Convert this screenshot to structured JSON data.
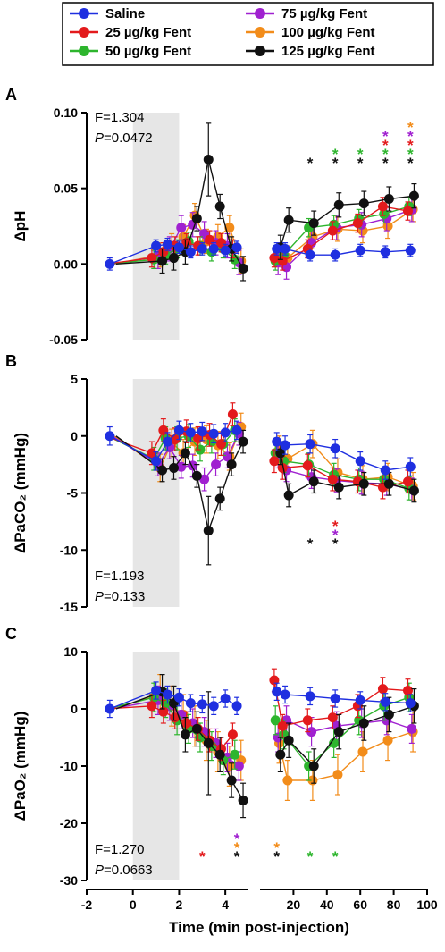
{
  "colors": {
    "saline": "#1f2fe0",
    "fent25": "#e31a1c",
    "fent50": "#2db52d",
    "fent75": "#a020d0",
    "fent100": "#f28c1a",
    "fent125": "#111111"
  },
  "chart_data": {
    "type": "line",
    "legend": [
      {
        "key": "saline",
        "label": "Saline"
      },
      {
        "key": "fent25",
        "label": "25 µg/kg Fent"
      },
      {
        "key": "fent50",
        "label": "50 µg/kg Fent"
      },
      {
        "key": "fent75",
        "label": "75 µg/kg Fent"
      },
      {
        "key": "fent100",
        "label": "100 µg/kg Fent"
      },
      {
        "key": "fent125",
        "label": "125 µg/kg Fent"
      }
    ],
    "xlabel": "Time (min post-injection)",
    "x_ticks_left": [
      "-2",
      "0",
      "2",
      "4"
    ],
    "x_ticks_right": [
      "20",
      "40",
      "60",
      "80",
      "100"
    ],
    "shaded_region": [
      0,
      2
    ],
    "x_left": [
      -1,
      1,
      1.5,
      2,
      2.5,
      3,
      3.5,
      4,
      4.5
    ],
    "x_right": [
      10,
      15,
      30,
      45,
      60,
      75,
      90
    ],
    "panels": [
      {
        "label": "A",
        "ylabel": "ΔpH",
        "yticks": [
          "0.10",
          "0.05",
          "0.00",
          "-0.05"
        ],
        "ylim": [
          -0.05,
          0.1
        ],
        "stat_f": "F=1.304",
        "stat_p": "=0.0472",
        "series": [
          {
            "key": "saline",
            "left": [
              0,
              0.012,
              0.013,
              0.011,
              0.008,
              0.01,
              0.01,
              0.009,
              0.011
            ],
            "right": [
              0.01,
              0.01,
              0.006,
              0.006,
              0.009,
              0.008,
              0.009
            ],
            "err": 0.004
          },
          {
            "key": "fent25",
            "left": [
              0,
              0.004,
              0.008,
              0.012,
              0.014,
              0.012,
              0.016,
              0.014,
              0.01
            ],
            "right": [
              0.004,
              0.002,
              0.01,
              0.022,
              0.027,
              0.038,
              0.035
            ],
            "err": 0.006
          },
          {
            "key": "fent50",
            "left": [
              0,
              0.003,
              0.006,
              0.01,
              0.015,
              0.012,
              0.008,
              0.01,
              0.003
            ],
            "right": [
              0.002,
              0.006,
              0.024,
              0.026,
              0.03,
              0.033,
              0.038
            ],
            "err": 0.006
          },
          {
            "key": "fent75",
            "left": [
              0,
              0.005,
              0.01,
              0.024,
              0.026,
              0.02,
              0.014,
              0.012,
              0.001
            ],
            "right": [
              0.001,
              -0.002,
              0.014,
              0.024,
              0.026,
              0.03,
              0.036
            ],
            "err": 0.008
          },
          {
            "key": "fent100",
            "left": [
              0,
              0.006,
              0.012,
              0.018,
              0.032,
              0.015,
              0.018,
              0.024,
              0.002
            ],
            "right": [
              0.006,
              0.004,
              0.018,
              0.023,
              0.022,
              0.025,
              0.036
            ],
            "err": 0.008
          },
          {
            "key": "fent125",
            "left": [
              0,
              0.002,
              0.004,
              0.008,
              0.03,
              0.069,
              0.038,
              0.01,
              -0.003
            ],
            "right": [
              0.011,
              0.029,
              0.027,
              0.039,
              0.04,
              0.043,
              0.045
            ],
            "err": 0.008
          }
        ],
        "stars": [
          {
            "x": 30,
            "levels": [
              "fent125"
            ]
          },
          {
            "x": 45,
            "levels": [
              "fent50",
              "fent125"
            ]
          },
          {
            "x": 60,
            "levels": [
              "fent50",
              "fent125"
            ]
          },
          {
            "x": 75,
            "levels": [
              "fent75",
              "fent25",
              "fent50",
              "fent125"
            ]
          },
          {
            "x": 90,
            "levels": [
              "fent100",
              "fent75",
              "fent25",
              "fent50",
              "fent125"
            ]
          }
        ]
      },
      {
        "label": "B",
        "ylabel": "ΔPaCO₂ (mmHg)",
        "yticks": [
          "5",
          "0",
          "-5",
          "-10",
          "-15"
        ],
        "ylim": [
          -15,
          5
        ],
        "stat_f": "F=1.193",
        "stat_p": "=0.133",
        "series": [
          {
            "key": "saline",
            "left": [
              0,
              -2.2,
              -0.5,
              0.5,
              0.3,
              0.4,
              0.2,
              0.3,
              0.5
            ],
            "right": [
              -0.5,
              -0.8,
              -0.7,
              -1.1,
              -2.2,
              -3.0,
              -2.7
            ],
            "err": 0.8
          },
          {
            "key": "fent25",
            "left": [
              0,
              -1.5,
              0.5,
              -0.3,
              0.4,
              -0.2,
              0.1,
              -0.7,
              1.9
            ],
            "right": [
              -2.2,
              -2.8,
              -2.6,
              -3.8,
              -4.0,
              -4.5,
              -4.0
            ],
            "err": 1.0
          },
          {
            "key": "fent50",
            "left": [
              0,
              -2.0,
              -0.2,
              -0.2,
              0.0,
              -1.2,
              -0.5,
              -0.7,
              0.5
            ],
            "right": [
              -1.5,
              -2.2,
              -2.5,
              -3.4,
              -3.8,
              -3.8,
              -4.6
            ],
            "err": 1.0
          },
          {
            "key": "fent75",
            "left": [
              0,
              -2.5,
              -1.0,
              -2.7,
              -2.6,
              -3.8,
              -2.5,
              -1.8,
              0.2
            ],
            "right": [
              -1.8,
              -3.0,
              -3.6,
              -3.9,
              -4.1,
              -4.2,
              -4.7
            ],
            "err": 1.0
          },
          {
            "key": "fent100",
            "left": [
              0,
              -2.8,
              -0.6,
              -1.5,
              -0.5,
              -0.3,
              -0.8,
              -1.8,
              0.8
            ],
            "right": [
              -1.2,
              -2.0,
              -0.7,
              -3.2,
              -3.8,
              -3.6,
              -4.4
            ],
            "err": 1.2
          },
          {
            "key": "fent125",
            "left": [
              0,
              -3.0,
              -2.8,
              -1.5,
              -3.5,
              -8.3,
              -5.5,
              -2.5,
              -0.5
            ],
            "right": [
              -1.5,
              -5.2,
              -4.0,
              -4.5,
              -4.2,
              -4.2,
              -4.8
            ],
            "err": 1.0
          }
        ],
        "stars": [
          {
            "x": 30,
            "levels": [
              "fent125"
            ]
          },
          {
            "x": 45,
            "levels": [
              "fent25",
              "fent75",
              "fent125"
            ]
          }
        ]
      },
      {
        "label": "C",
        "ylabel": "ΔPaO₂ (mmHg)",
        "yticks": [
          "10",
          "0",
          "-10",
          "-20",
          "-30"
        ],
        "ylim": [
          -30,
          10
        ],
        "stat_f": "F=1.270",
        "stat_p": "=0.0663",
        "series": [
          {
            "key": "saline",
            "left": [
              0,
              3.2,
              2.5,
              2.0,
              1.0,
              0.8,
              0.5,
              1.8,
              0.5
            ],
            "right": [
              3.0,
              2.5,
              2.2,
              1.8,
              1.5,
              1.2,
              1.0
            ],
            "err": 1.5
          },
          {
            "key": "fent25",
            "left": [
              0,
              0.5,
              -0.5,
              -1.5,
              -2.5,
              -3.5,
              -5.5,
              -7.0,
              -4.5
            ],
            "right": [
              5.0,
              -3.0,
              -2.0,
              -1.5,
              0.5,
              3.5,
              3.2
            ],
            "err": 2.0
          },
          {
            "key": "fent50",
            "left": [
              0,
              2.0,
              1.0,
              -2.0,
              -3.5,
              -5.0,
              -6.5,
              -9.0,
              -8.0
            ],
            "right": [
              -2.0,
              -4.5,
              -10.0,
              -6.0,
              -2.0,
              0.5,
              2.0
            ],
            "err": 2.5
          },
          {
            "key": "fent75",
            "left": [
              0,
              1.5,
              0.5,
              -1.0,
              -2.5,
              -4.0,
              -6.0,
              -8.5,
              -10.0
            ],
            "right": [
              -5.0,
              -2.0,
              -4.0,
              -3.0,
              -2.5,
              -2.0,
              -3.5
            ],
            "err": 2.5
          },
          {
            "key": "fent100",
            "left": [
              0,
              2.5,
              0.5,
              -1.0,
              -3.0,
              -5.5,
              -7.5,
              -10.0,
              -9.0
            ],
            "right": [
              -6.0,
              -12.5,
              -12.5,
              -11.5,
              -7.5,
              -5.5,
              -4.0
            ],
            "err": 3.5
          },
          {
            "key": "fent125",
            "left": [
              0,
              3.0,
              1.0,
              -4.5,
              -3.5,
              -6.0,
              -8.0,
              -12.5,
              -16.0
            ],
            "right": [
              -8.0,
              -5.5,
              -10.0,
              -4.0,
              -2.5,
              -1.0,
              0.5
            ],
            "err": 3.0
          }
        ],
        "stars": [
          {
            "x": 3,
            "levels": [
              "fent25"
            ]
          },
          {
            "x": 4.5,
            "levels": [
              "fent75",
              "fent100",
              "fent125"
            ]
          },
          {
            "x": 10,
            "levels": [
              "fent100",
              "fent125"
            ]
          },
          {
            "x": 30,
            "levels": [
              "fent50"
            ]
          },
          {
            "x": 45,
            "levels": [
              "fent50"
            ]
          }
        ]
      }
    ]
  }
}
